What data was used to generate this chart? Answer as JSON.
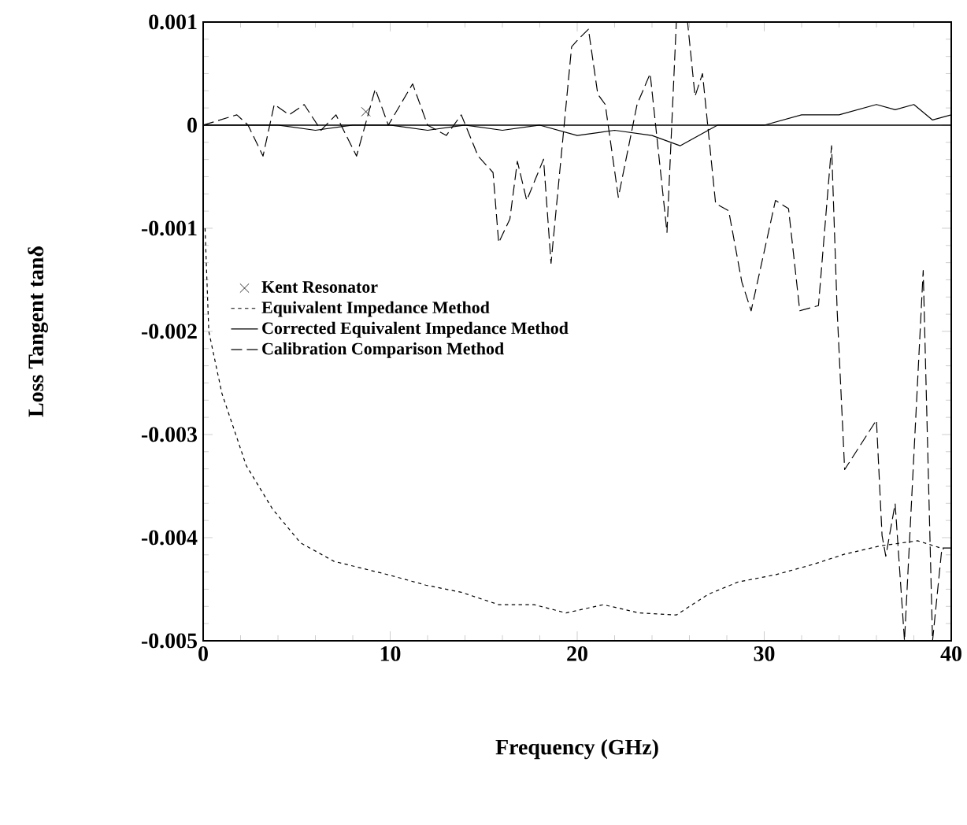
{
  "chart_data": {
    "type": "line",
    "xlabel": "Frequency (GHz)",
    "ylabel": "Loss Tangent tanδ",
    "xlim": [
      0,
      40
    ],
    "ylim": [
      -0.005,
      0.001
    ],
    "xticks": [
      0,
      10,
      20,
      30,
      40
    ],
    "yticks": [
      -0.005,
      -0.004,
      -0.003,
      -0.002,
      -0.001,
      0,
      0.001
    ],
    "legend": "left",
    "grid": false,
    "ref_lines": [
      {
        "axis": "y",
        "value": 0
      }
    ],
    "series": [
      {
        "name": "Kent Resonator",
        "type": "scatter",
        "marker": "cross",
        "color": "#000000",
        "x": [
          8.7
        ],
        "values": [
          0.00013
        ]
      },
      {
        "name": "Equivalent Impedance Method",
        "line_style": "dotted",
        "color": "#000000",
        "x": [
          0.1,
          0.3,
          1.0,
          2.3,
          3.7,
          5.2,
          7.0,
          9.9,
          11.9,
          13.8,
          15.8,
          17.7,
          19.4,
          21.4,
          23.3,
          25.3,
          27.0,
          28.6,
          30.6,
          32.6,
          34.3,
          36.2,
          38.2,
          39.6
        ],
        "values": [
          -0.001,
          -0.002,
          -0.0026,
          -0.0033,
          -0.00372,
          -0.00405,
          -0.00423,
          -0.00436,
          -0.00446,
          -0.00453,
          -0.00465,
          -0.00465,
          -0.00473,
          -0.00465,
          -0.00473,
          -0.00475,
          -0.00455,
          -0.00443,
          -0.00436,
          -0.00426,
          -0.00416,
          -0.00408,
          -0.00403,
          -0.00411
        ]
      },
      {
        "name": "Corrected Equivalent Impedance Method",
        "line_style": "solid",
        "color": "#000000",
        "x": [
          0,
          2,
          4,
          6,
          8,
          10,
          12,
          14,
          16,
          18,
          20,
          22,
          24,
          25.5,
          27.5,
          30,
          32,
          34,
          36,
          37,
          38,
          39,
          40
        ],
        "values": [
          0,
          0,
          0,
          -5e-05,
          0,
          0,
          -5e-05,
          0,
          -5e-05,
          0,
          -0.0001,
          -5e-05,
          -0.0001,
          -0.0002,
          0,
          0,
          0.0001,
          0.0001,
          0.0002,
          0.00015,
          0.0002,
          5e-05,
          0.0001
        ]
      },
      {
        "name": "Calibration Comparison Method",
        "line_style": "dashed",
        "color": "#000000",
        "x": [
          0,
          1.8,
          2.4,
          3.2,
          3.8,
          4.6,
          5.4,
          6.3,
          7.1,
          8.2,
          9.2,
          9.9,
          11.2,
          12.0,
          13.0,
          13.8,
          14.7,
          15.5,
          15.8,
          16.4,
          16.8,
          17.3,
          18.2,
          18.6,
          19.7,
          20.1,
          20.6,
          21.1,
          21.5,
          22.2,
          23.2,
          23.9,
          24.8,
          25.3,
          25.9,
          26.3,
          26.7,
          27.4,
          28.1,
          28.8,
          29.3,
          30.6,
          31.3,
          31.9,
          32.9,
          33.6,
          33.9,
          34.3,
          36.0,
          36.3,
          36.5,
          37.0,
          37.5,
          38.5,
          39.0,
          39.5,
          40
        ],
        "values": [
          0,
          0.0001,
          0,
          -0.0003,
          0.0002,
          0.0001,
          0.0002,
          -5e-05,
          0.0001,
          -0.0003,
          0.00035,
          0,
          0.0004,
          0,
          -0.0001,
          0.0001,
          -0.0003,
          -0.00046,
          -0.00114,
          -0.00091,
          -0.00035,
          -0.00073,
          -0.00033,
          -0.00134,
          0.00076,
          0.00084,
          0.00093,
          0.0003,
          0.0002,
          -0.0007,
          0.0002,
          0.0005,
          -0.00104,
          0.001,
          0.001,
          0.00028,
          0.0005,
          -0.00076,
          -0.00083,
          -0.00152,
          -0.0018,
          -0.00073,
          -0.00081,
          -0.0018,
          -0.00175,
          -0.0002,
          -0.0018,
          -0.00334,
          -0.00286,
          -0.00398,
          -0.00418,
          -0.00367,
          -0.005,
          -0.00141,
          -0.005,
          -0.0041,
          -0.0041
        ]
      }
    ]
  }
}
